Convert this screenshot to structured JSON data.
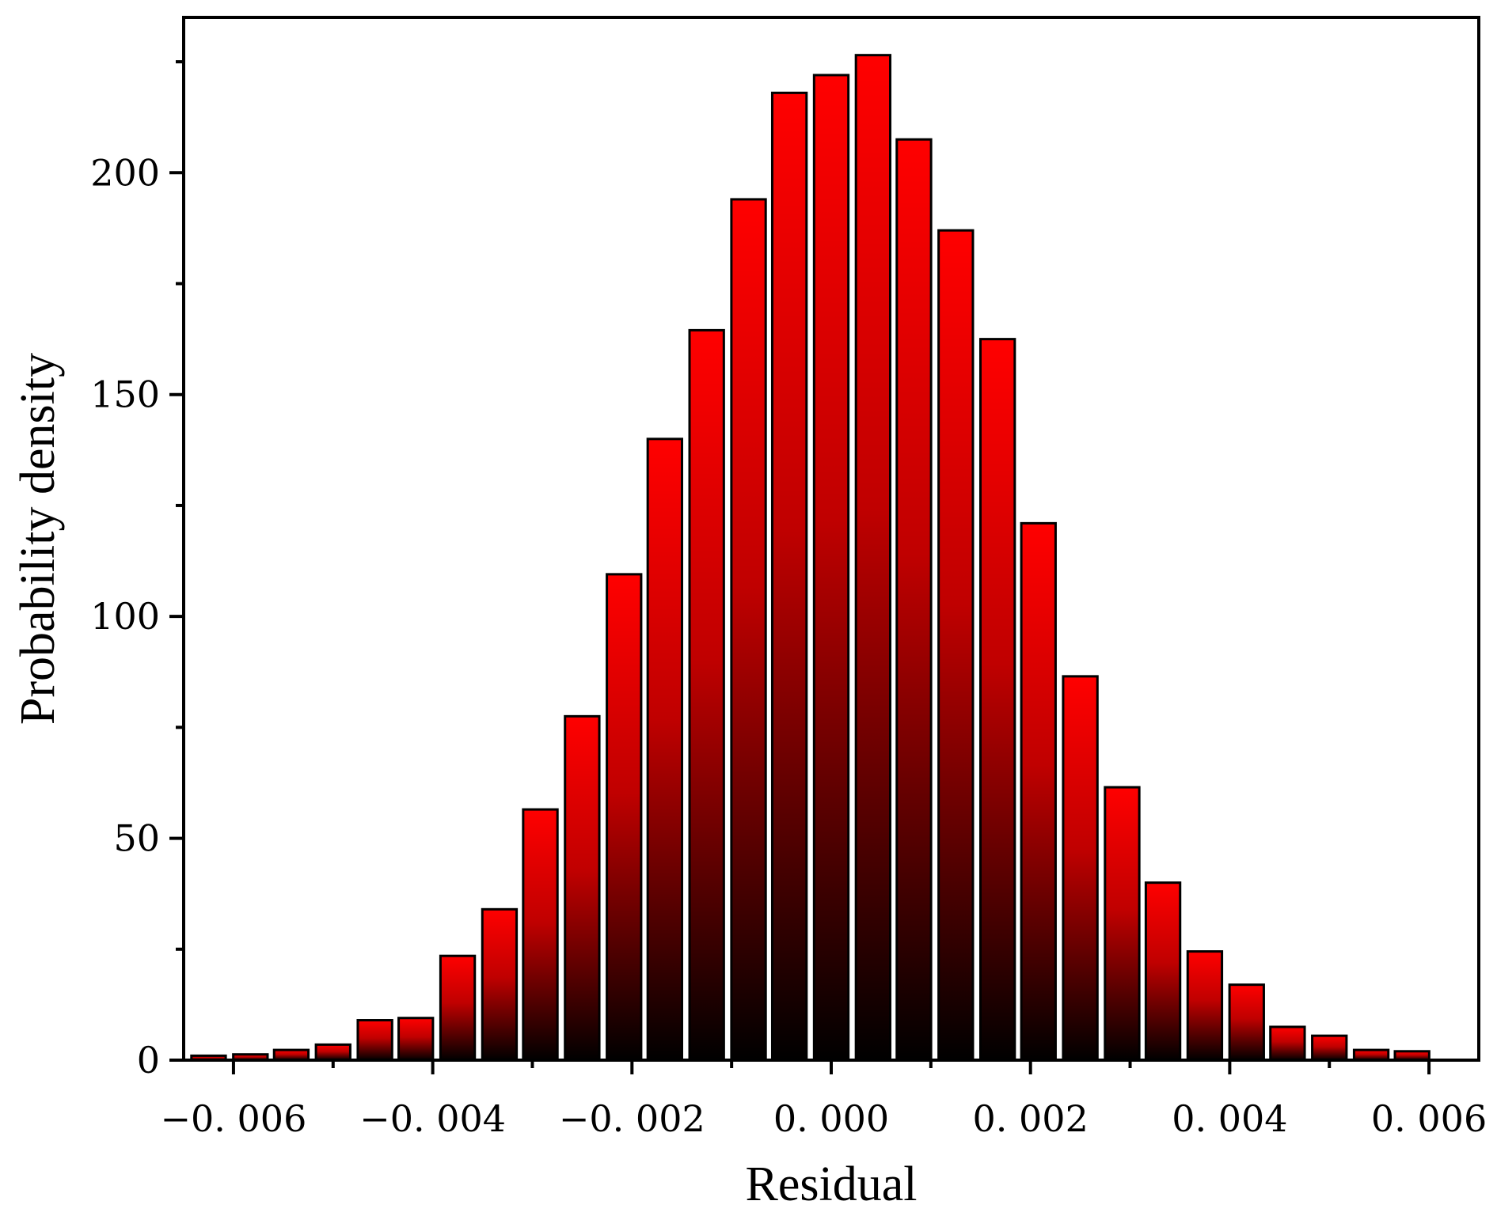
{
  "chart_data": {
    "type": "bar",
    "title": "",
    "xlabel": "Residual",
    "ylabel": "Probability density",
    "xlim": [
      -0.0065,
      0.0065
    ],
    "ylim": [
      0,
      235
    ],
    "x_ticks": [
      -0.006,
      -0.004,
      -0.002,
      0.0,
      0.002,
      0.004,
      0.006
    ],
    "x_tick_labels": [
      "−0. 006",
      "−0. 004",
      "−0. 002",
      "0. 000",
      "0. 002",
      "0. 004",
      "0. 006"
    ],
    "y_ticks": [
      0,
      50,
      100,
      150,
      200
    ],
    "y_tick_labels": [
      "0",
      "50",
      "100",
      "150",
      "200"
    ],
    "grid": false,
    "legend": "none",
    "bar_color_top": "#ff0000",
    "bar_color_bottom": "#000000",
    "bar_edge_color": "#000000",
    "bins": {
      "centers": [
        -0.00625,
        -0.00583,
        -0.00542,
        -0.005,
        -0.00458,
        -0.00417,
        -0.00375,
        -0.00333,
        -0.00292,
        -0.0025,
        -0.00208,
        -0.00167,
        -0.00125,
        -0.00083,
        -0.00042,
        0.0,
        0.00042,
        0.00083,
        0.00125,
        0.00167,
        0.00208,
        0.0025,
        0.00292,
        0.00333,
        0.00375,
        0.00417,
        0.00458,
        0.005,
        0.00542,
        0.00583
      ],
      "values": [
        1.0,
        1.3,
        2.3,
        3.5,
        9,
        9.5,
        23.5,
        34,
        56.5,
        77.5,
        109.5,
        140,
        164.5,
        194,
        218,
        222,
        226.5,
        207.5,
        187,
        162.5,
        121,
        86.5,
        61.5,
        40,
        24.5,
        17,
        7.5,
        5.5,
        2.3,
        2.0
      ]
    }
  }
}
